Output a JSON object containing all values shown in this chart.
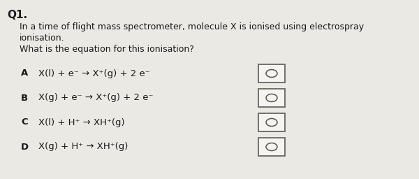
{
  "title": "Q1.",
  "question_line1": "In a time of flight mass spectrometer, molecule X is ionised using electrospray",
  "question_line2": "ionisation.",
  "question_line3": "What is the equation for this ionisation?",
  "options": [
    {
      "label": "A",
      "eq_parts": [
        "X(l) + e",
        "⁻",
        " → X",
        "⁺",
        "(g) + 2 e",
        "⁻"
      ]
    },
    {
      "label": "B",
      "eq_parts": [
        "X(g) + e",
        "⁻",
        " → X",
        "⁺",
        "(g) + 2 e",
        "⁻"
      ]
    },
    {
      "label": "C",
      "eq_parts": [
        "X(l) + H",
        "⁺",
        " → XH",
        "⁺",
        "(g)",
        ""
      ]
    },
    {
      "label": "D",
      "eq_parts": [
        "X(g) + H",
        "⁺",
        " → XH",
        "⁺",
        "(g)",
        ""
      ]
    }
  ],
  "bg_color": "#ebe9e4",
  "text_color": "#1a1a1a",
  "box_color": "#f5f4f0",
  "box_edge_color": "#666666"
}
